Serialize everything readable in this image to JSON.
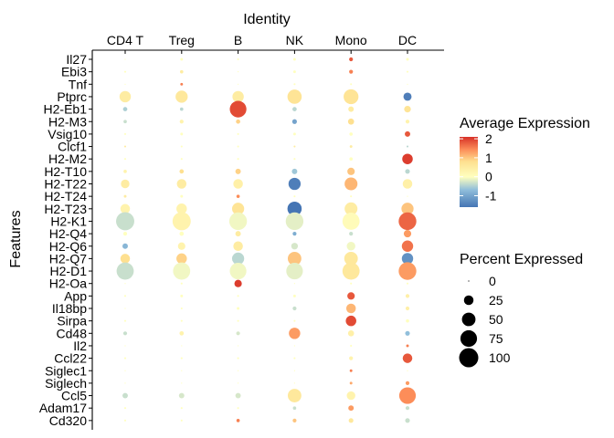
{
  "chart_data": {
    "type": "dotplot",
    "title_x_top": "Identity",
    "ylabel": "Features",
    "identities": [
      "CD4 T",
      "Treg",
      "B",
      "NK",
      "Mono",
      "DC"
    ],
    "features": [
      "Il27",
      "Ebi3",
      "Tnf",
      "Ptprc",
      "H2-Eb1",
      "H2-M3",
      "Vsig10",
      "Clcf1",
      "H2-M2",
      "H2-T10",
      "H2-T22",
      "H2-T24",
      "H2-T23",
      "H2-K1",
      "H2-Q4",
      "H2-Q6",
      "H2-Q7",
      "H2-D1",
      "H2-Oa",
      "App",
      "Il18bp",
      "Sirpa",
      "Cd48",
      "Il2",
      "Ccl22",
      "Siglec1",
      "Siglech",
      "Ccl5",
      "Adam17",
      "Cd320"
    ],
    "color_legend": {
      "title": "Average Expression",
      "ticks": [
        2,
        1,
        0,
        -1
      ],
      "range": [
        -1.6,
        2.1
      ]
    },
    "size_legend": {
      "title": "Percent Expressed",
      "ticks": [
        0,
        25,
        50,
        75,
        100
      ]
    },
    "colors": {
      "low": "#4575b4",
      "mid": "#ffffbf",
      "high": "#d73027"
    },
    "pct_expressed": [
      [
        0,
        2,
        1,
        2,
        4,
        2
      ],
      [
        1,
        3,
        0,
        2,
        4,
        1
      ],
      [
        0,
        2,
        0,
        1,
        1,
        0
      ],
      [
        35,
        40,
        35,
        55,
        60,
        18
      ],
      [
        5,
        3,
        75,
        5,
        8,
        12
      ],
      [
        3,
        4,
        5,
        6,
        10,
        4
      ],
      [
        1,
        2,
        1,
        2,
        3,
        8
      ],
      [
        1,
        1,
        1,
        1,
        2,
        1
      ],
      [
        1,
        1,
        1,
        1,
        3,
        30
      ],
      [
        3,
        5,
        8,
        8,
        15,
        6
      ],
      [
        20,
        25,
        25,
        40,
        45,
        25
      ],
      [
        2,
        2,
        3,
        1,
        1,
        0
      ],
      [
        25,
        30,
        40,
        55,
        45,
        40
      ],
      [
        90,
        90,
        85,
        85,
        80,
        85
      ],
      [
        4,
        5,
        8,
        4,
        4,
        15
      ],
      [
        8,
        15,
        25,
        12,
        20,
        35
      ],
      [
        25,
        30,
        40,
        50,
        50,
        35
      ],
      [
        80,
        80,
        75,
        75,
        80,
        85
      ],
      [
        0,
        1,
        15,
        0,
        1,
        1
      ],
      [
        1,
        2,
        1,
        2,
        15,
        4
      ],
      [
        0,
        1,
        2,
        4,
        25,
        4
      ],
      [
        1,
        1,
        1,
        1,
        30,
        3
      ],
      [
        4,
        5,
        4,
        35,
        10,
        6
      ],
      [
        0,
        0,
        0,
        0,
        1,
        2
      ],
      [
        1,
        1,
        1,
        1,
        4,
        25
      ],
      [
        0,
        0,
        0,
        0,
        2,
        0
      ],
      [
        0,
        0,
        0,
        0,
        2,
        4
      ],
      [
        8,
        8,
        8,
        50,
        20,
        75
      ],
      [
        1,
        1,
        1,
        3,
        8,
        4
      ],
      [
        1,
        1,
        3,
        4,
        6,
        6
      ]
    ],
    "avg_expression": [
      [
        0,
        0,
        0,
        0,
        1.8,
        0
      ],
      [
        0,
        0.5,
        0,
        0,
        1.5,
        0
      ],
      [
        0,
        1.5,
        0,
        0,
        0,
        0
      ],
      [
        0.5,
        0.6,
        0.5,
        0.7,
        0.7,
        -1.5
      ],
      [
        -0.6,
        -0.5,
        1.9,
        -0.5,
        0.5,
        0.7
      ],
      [
        -0.4,
        0.3,
        0.9,
        -1.1,
        0.8,
        0.3
      ],
      [
        0,
        0,
        0,
        0,
        0,
        1.8
      ],
      [
        0.5,
        0,
        0,
        0.5,
        0.5,
        -0.5
      ],
      [
        0,
        0,
        0,
        0,
        0,
        2.0
      ],
      [
        0.3,
        0.8,
        0.9,
        -0.7,
        1.0,
        -0.5
      ],
      [
        0.5,
        0.5,
        0.4,
        -1.5,
        1.1,
        0.4
      ],
      [
        0.5,
        0,
        1.4,
        0,
        0,
        0
      ],
      [
        0.3,
        0.3,
        0.7,
        -1.6,
        0.5,
        1.0
      ],
      [
        -0.4,
        0.3,
        -0.1,
        -0.2,
        0.1,
        1.7
      ],
      [
        0,
        0,
        0.5,
        -1.0,
        -0.4,
        1.3
      ],
      [
        -0.9,
        0.3,
        0.5,
        -0.3,
        -0.1,
        1.6
      ],
      [
        0.8,
        0.9,
        -0.5,
        1.0,
        0.6,
        -1.3
      ],
      [
        -0.4,
        -0.1,
        -0.1,
        -0.2,
        0.6,
        1.3
      ],
      [
        0,
        0,
        2.0,
        0,
        0,
        0
      ],
      [
        0,
        0,
        0,
        0,
        1.8,
        0.4
      ],
      [
        0,
        0,
        0,
        -0.4,
        1.1,
        0.4
      ],
      [
        0,
        0,
        0,
        0,
        1.9,
        0
      ],
      [
        -0.4,
        0.3,
        -0.3,
        1.3,
        0.4,
        -0.8
      ],
      [
        0,
        0,
        0,
        0,
        0,
        1.5
      ],
      [
        0,
        0,
        0,
        0,
        0.3,
        1.8
      ],
      [
        0,
        0,
        0,
        0,
        1.5,
        0
      ],
      [
        0,
        0,
        0,
        0,
        1.2,
        1.3
      ],
      [
        -0.4,
        -0.3,
        -0.3,
        0.6,
        0.3,
        1.4
      ],
      [
        0,
        0,
        0,
        -0.4,
        1.3,
        -0.4
      ],
      [
        0,
        0,
        1.5,
        1.0,
        0.6,
        -0.4
      ]
    ]
  }
}
